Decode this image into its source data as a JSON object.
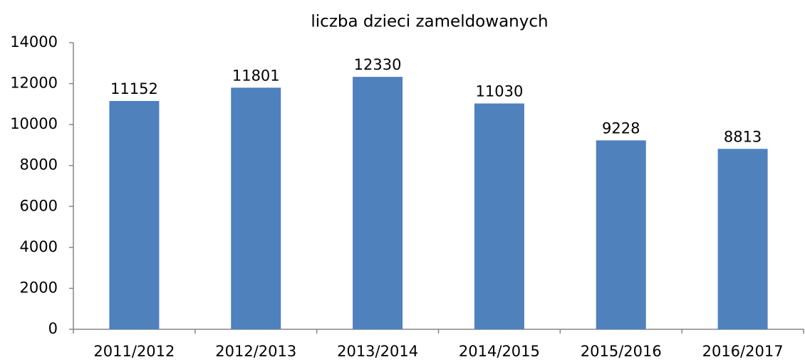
{
  "chart_data": {
    "type": "bar",
    "title": "liczba dzieci zameldowanych",
    "categories": [
      "2011/2012",
      "2012/2013",
      "2013/2014",
      "2014/2015",
      "2015/2016",
      "2016/2017"
    ],
    "values": [
      11152,
      11801,
      12330,
      11030,
      9228,
      8813
    ],
    "color": "#4f81bd",
    "ylim": [
      0,
      14000
    ],
    "yticks": [
      0,
      2000,
      4000,
      6000,
      8000,
      10000,
      12000,
      14000
    ],
    "grid": false
  }
}
